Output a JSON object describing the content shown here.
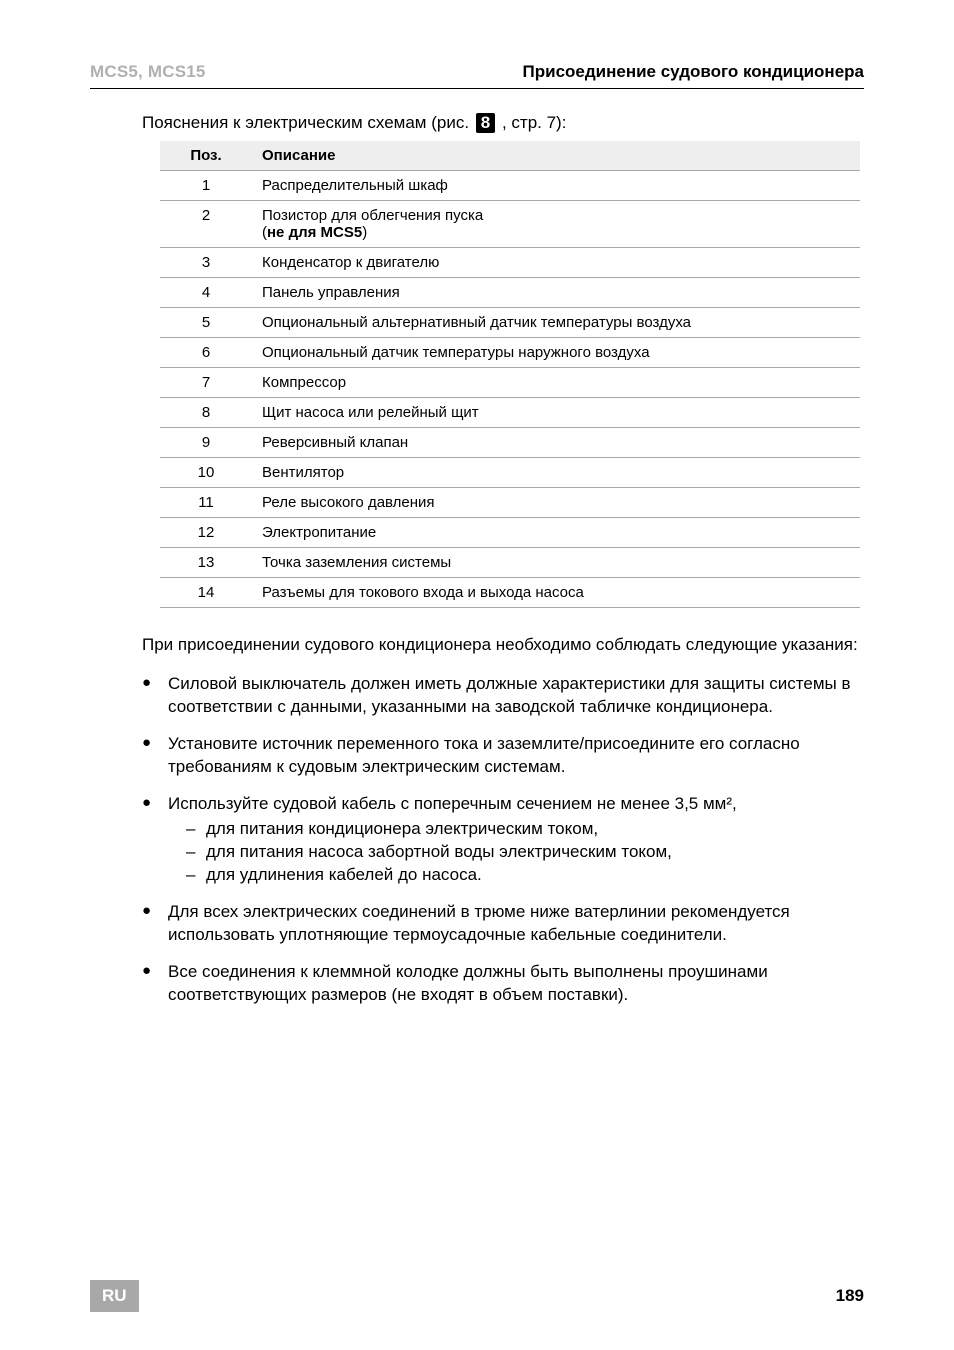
{
  "header": {
    "left": "MCS5, MCS15",
    "right": "Присоединение судового кондиционера"
  },
  "intro": {
    "prefix": "Пояснения к электрическим схемам (рис. ",
    "boxDigit": "8",
    "suffix": " , стр. 7):"
  },
  "table": {
    "background_header": "#eeeeee",
    "border_color": "#a8a8a8",
    "font_size": 15,
    "headers": {
      "poz": "Поз.",
      "desc": "Описание"
    },
    "rows": [
      {
        "poz": "1",
        "desc": "Распределительный шкаф"
      },
      {
        "poz": "2",
        "desc_line1": "Позистор для облегчения пуска",
        "desc_line2_prefix": "(",
        "desc_line2_bold": "не для MCS5",
        "desc_line2_suffix": ")"
      },
      {
        "poz": "3",
        "desc": "Конденсатор к двигателю"
      },
      {
        "poz": "4",
        "desc": "Панель управления"
      },
      {
        "poz": "5",
        "desc": "Опциональный альтернативный датчик температуры воздуха"
      },
      {
        "poz": "6",
        "desc": "Опциональный датчик температуры наружного воздуха"
      },
      {
        "poz": "7",
        "desc": "Компрессор"
      },
      {
        "poz": "8",
        "desc": "Щит насоса или релейный щит"
      },
      {
        "poz": "9",
        "desc": "Реверсивный клапан"
      },
      {
        "poz": "10",
        "desc": "Вентилятор"
      },
      {
        "poz": "11",
        "desc": "Реле высокого давления"
      },
      {
        "poz": "12",
        "desc": "Электропитание"
      },
      {
        "poz": "13",
        "desc": "Точка заземления системы"
      },
      {
        "poz": "14",
        "desc": "Разъемы для токового входа и выхода насоса"
      }
    ]
  },
  "para1": "При присоединении судового кондиционера необходимо соблюдать следующие указания:",
  "bullets": [
    {
      "text": "Силовой выключатель должен иметь должные характеристики для защиты системы в соответствии с данными, указанными на заводской табличке кондиционера."
    },
    {
      "text": "Установите источник переменного тока и заземлите/присоедините его согласно требованиям к судовым электрическим системам."
    },
    {
      "text": "Используйте судовой кабель с поперечным сечением не менее 3,5 мм²,",
      "sub": [
        "для питания кондиционера электрическим током,",
        "для питания насоса забортной воды электрическим током,",
        "для удлинения кабелей до насоса."
      ]
    },
    {
      "text": "Для всех электрических соединений в трюме ниже ватерлинии рекомендуется использовать уплотняющие термоусадочные кабельные соединители."
    },
    {
      "text": "Все соединения к клеммной колодке должны быть выполнены проушинами соответствующих размеров (не входят в объем поставки)."
    }
  ],
  "footer": {
    "lang": "RU",
    "page": "189",
    "badge_bg": "#a8a8a8",
    "badge_fg": "#ffffff"
  }
}
